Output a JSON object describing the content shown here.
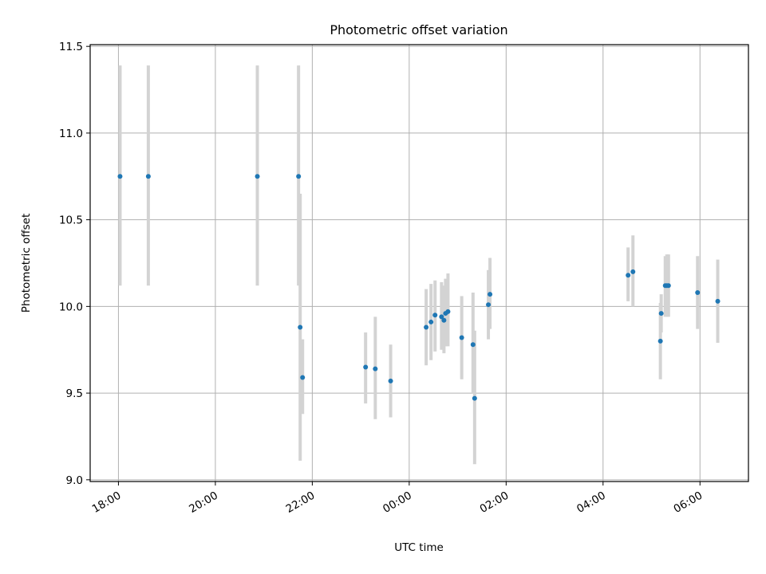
{
  "chart_data": {
    "type": "scatter",
    "title": "Photometric offset variation",
    "xlabel": "UTC time",
    "ylabel": "Photometric offset",
    "x_axis": "time (UTC, night spanning midnight)",
    "xlim": [
      "17:25",
      "07:00"
    ],
    "ylim": [
      8.99,
      11.51
    ],
    "xticks": [
      "18:00",
      "20:00",
      "22:00",
      "00:00",
      "02:00",
      "04:00",
      "06:00"
    ],
    "yticks": [
      "9.0",
      "9.5",
      "10.0",
      "10.5",
      "11.0",
      "11.5"
    ],
    "grid": true,
    "marker_color": "#1f77b4",
    "errorbar_color": "#d3d3d3",
    "series": [
      {
        "points": [
          {
            "x": "18:02",
            "y": 10.75,
            "ylow": 10.12,
            "yhigh": 11.39
          },
          {
            "x": "18:37",
            "y": 10.75,
            "ylow": 10.12,
            "yhigh": 11.39
          },
          {
            "x": "20:52",
            "y": 10.75,
            "ylow": 10.12,
            "yhigh": 11.39
          },
          {
            "x": "21:43",
            "y": 10.75,
            "ylow": 10.12,
            "yhigh": 11.39
          },
          {
            "x": "21:45",
            "y": 9.88,
            "ylow": 9.11,
            "yhigh": 10.65
          },
          {
            "x": "21:48",
            "y": 9.59,
            "ylow": 9.38,
            "yhigh": 9.81
          },
          {
            "x": "23:06",
            "y": 9.65,
            "ylow": 9.44,
            "yhigh": 9.85
          },
          {
            "x": "23:18",
            "y": 9.64,
            "ylow": 9.35,
            "yhigh": 9.94
          },
          {
            "x": "23:37",
            "y": 9.57,
            "ylow": 9.36,
            "yhigh": 9.78
          },
          {
            "x": "00:21",
            "y": 9.88,
            "ylow": 9.66,
            "yhigh": 10.1
          },
          {
            "x": "00:27",
            "y": 9.91,
            "ylow": 9.69,
            "yhigh": 10.13
          },
          {
            "x": "00:32",
            "y": 9.95,
            "ylow": 9.74,
            "yhigh": 10.15
          },
          {
            "x": "00:40",
            "y": 9.94,
            "ylow": 9.75,
            "yhigh": 10.14
          },
          {
            "x": "00:43",
            "y": 9.92,
            "ylow": 9.73,
            "yhigh": 10.12
          },
          {
            "x": "00:45",
            "y": 9.96,
            "ylow": 9.77,
            "yhigh": 10.16
          },
          {
            "x": "00:48",
            "y": 9.97,
            "ylow": 9.77,
            "yhigh": 10.19
          },
          {
            "x": "01:05",
            "y": 9.82,
            "ylow": 9.58,
            "yhigh": 10.06
          },
          {
            "x": "01:19",
            "y": 9.78,
            "ylow": 9.5,
            "yhigh": 10.08
          },
          {
            "x": "01:21",
            "y": 9.47,
            "ylow": 9.09,
            "yhigh": 9.86
          },
          {
            "x": "01:38",
            "y": 10.01,
            "ylow": 9.81,
            "yhigh": 10.21
          },
          {
            "x": "01:40",
            "y": 10.07,
            "ylow": 9.87,
            "yhigh": 10.28
          },
          {
            "x": "04:31",
            "y": 10.18,
            "ylow": 10.03,
            "yhigh": 10.34
          },
          {
            "x": "04:37",
            "y": 10.2,
            "ylow": 10.0,
            "yhigh": 10.41
          },
          {
            "x": "05:11",
            "y": 9.8,
            "ylow": 9.58,
            "yhigh": 10.02
          },
          {
            "x": "05:12",
            "y": 9.96,
            "ylow": 9.85,
            "yhigh": 10.07
          },
          {
            "x": "05:17",
            "y": 10.12,
            "ylow": 9.94,
            "yhigh": 10.29
          },
          {
            "x": "05:19",
            "y": 10.12,
            "ylow": 9.94,
            "yhigh": 10.3
          },
          {
            "x": "05:21",
            "y": 10.12,
            "ylow": 9.94,
            "yhigh": 10.3
          },
          {
            "x": "05:57",
            "y": 10.08,
            "ylow": 9.87,
            "yhigh": 10.29
          },
          {
            "x": "06:22",
            "y": 10.03,
            "ylow": 9.79,
            "yhigh": 10.27
          }
        ]
      }
    ]
  }
}
